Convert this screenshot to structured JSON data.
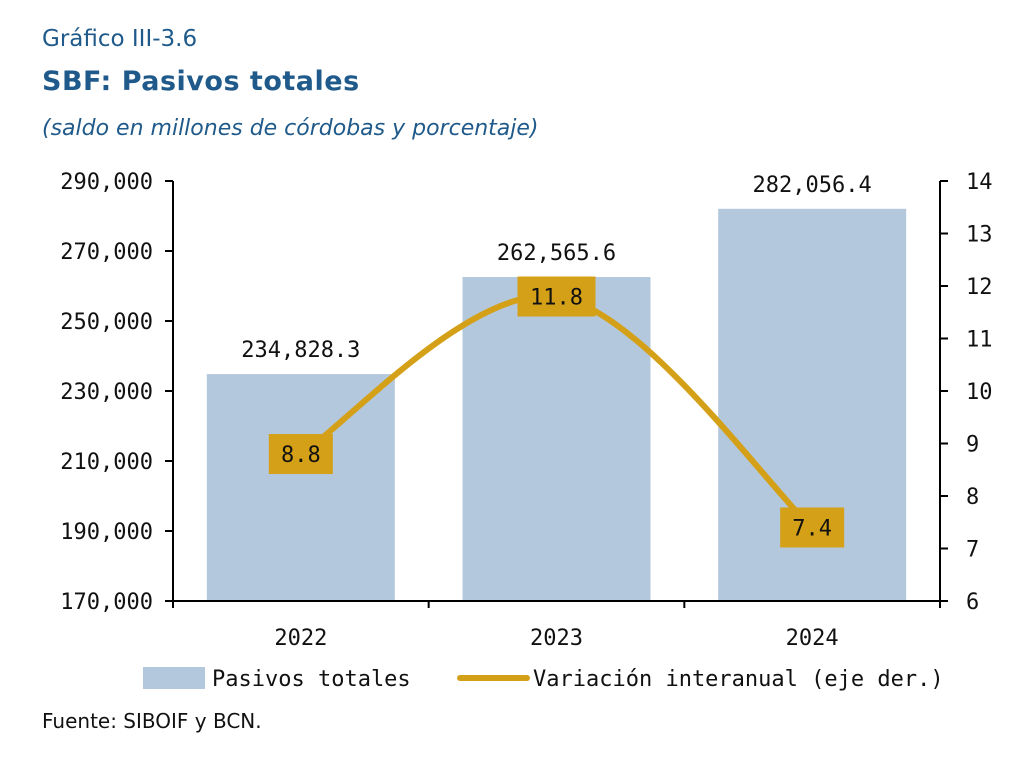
{
  "header": {
    "label": "Gráfico III-3.6",
    "title": "SBF: Pasivos totales",
    "subtitle": "(saldo en millones de córdobas y porcentaje)"
  },
  "footer": {
    "source": "Fuente: SIBOIF y BCN."
  },
  "colors": {
    "bar": "#b4c8dd",
    "line": "#d4a017",
    "label_box": "#d4a017",
    "title": "#1f5a8a"
  },
  "chart_data": {
    "type": "bar",
    "categories": [
      "2022",
      "2023",
      "2024"
    ],
    "series": [
      {
        "name": "Pasivos totales",
        "type": "bar",
        "axis": "left",
        "values": [
          234828.3,
          262565.6,
          282056.4
        ],
        "labels": [
          "234,828.3",
          "262,565.6",
          "282,056.4"
        ]
      },
      {
        "name": "Variación interanual (eje der.)",
        "type": "line",
        "axis": "right",
        "smooth": true,
        "values": [
          8.8,
          11.8,
          7.4
        ],
        "labels": [
          "8.8",
          "11.8",
          "7.4"
        ]
      }
    ],
    "y_left": {
      "ylim": [
        170000,
        290000
      ],
      "ticks": [
        170000,
        190000,
        210000,
        230000,
        250000,
        270000,
        290000
      ],
      "tick_labels": [
        "170,000",
        "190,000",
        "210,000",
        "230,000",
        "250,000",
        "270,000",
        "290,000"
      ]
    },
    "y_right": {
      "ylim": [
        6,
        14
      ],
      "ticks": [
        6,
        7,
        8,
        9,
        10,
        11,
        12,
        13,
        14
      ],
      "tick_labels": [
        "6",
        "7",
        "8",
        "9",
        "10",
        "11",
        "12",
        "13",
        "14"
      ]
    },
    "grid": false,
    "legend": "bottom"
  }
}
